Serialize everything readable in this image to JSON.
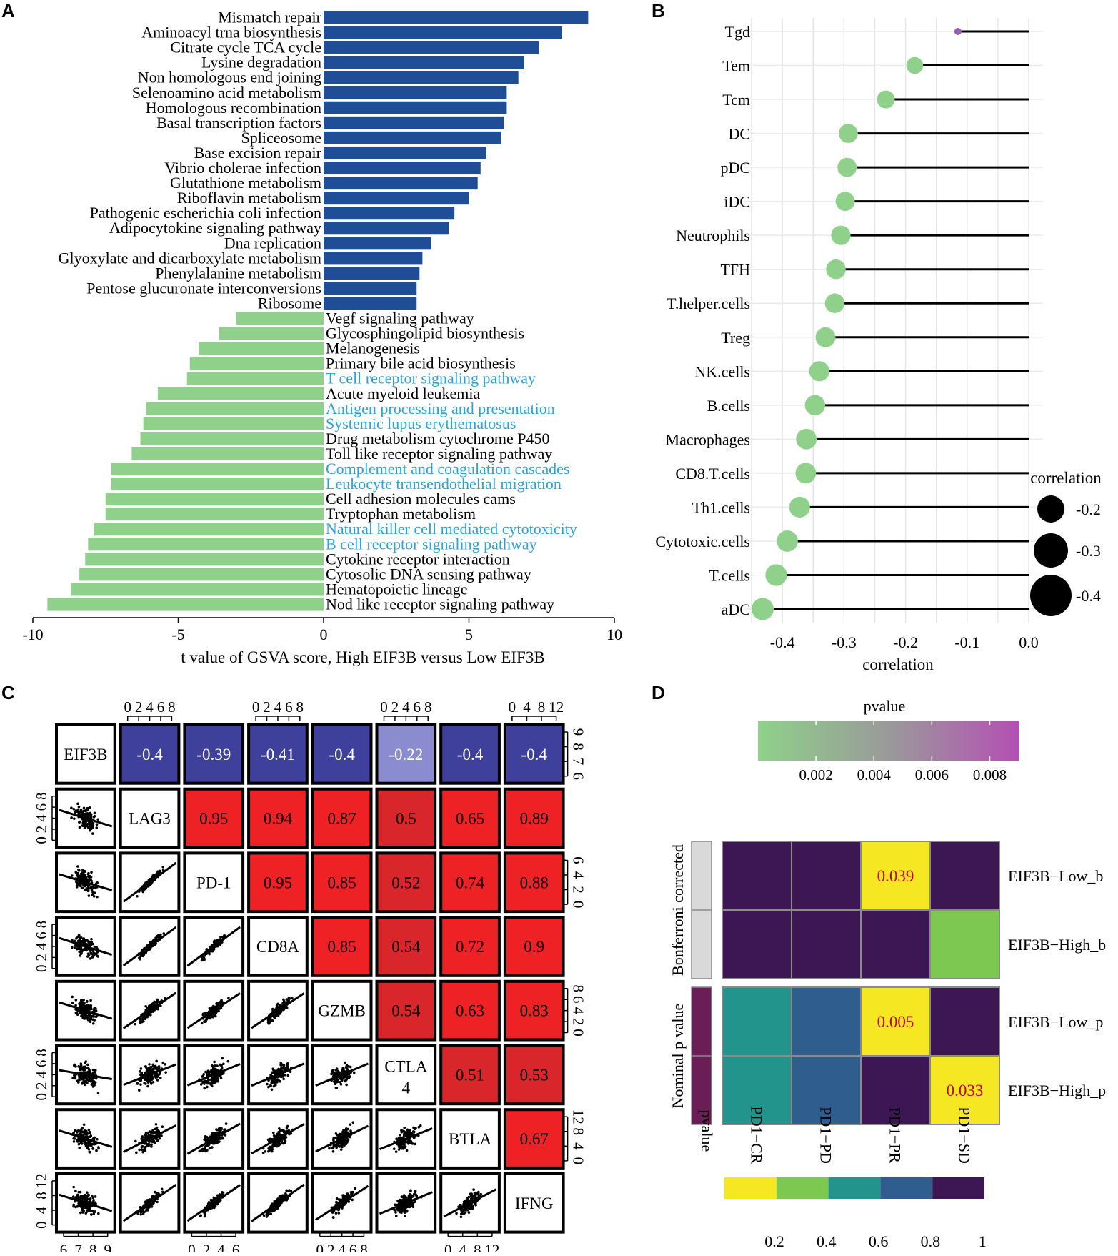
{
  "panel_labels": [
    "A",
    "B",
    "C",
    "D"
  ],
  "chart_data": [
    {
      "panel": "A",
      "type": "bar",
      "orientation": "horizontal",
      "xlabel": "t value of GSVA score, High EIF3B versus Low EIF3B",
      "xlim": [
        -10,
        10
      ],
      "xticks": [
        "-10",
        "-5",
        "0",
        "5",
        "10"
      ],
      "colors": {
        "positive": "#1f4e96",
        "negative": "#8fd18a",
        "highlight_text": "#29a3dc",
        "text": "#000000"
      },
      "bars": [
        {
          "label": "Mismatch repair",
          "value": 9.1,
          "highlight": false
        },
        {
          "label": "Aminoacyl trna biosynthesis",
          "value": 8.2,
          "highlight": false
        },
        {
          "label": "Citrate cycle TCA cycle",
          "value": 7.4,
          "highlight": false
        },
        {
          "label": "Lysine degradation",
          "value": 6.9,
          "highlight": false
        },
        {
          "label": "Non homologous end joining",
          "value": 6.7,
          "highlight": false
        },
        {
          "label": "Selenoamino acid metabolism",
          "value": 6.3,
          "highlight": false
        },
        {
          "label": "Homologous recombination",
          "value": 6.3,
          "highlight": false
        },
        {
          "label": "Basal transcription factors",
          "value": 6.2,
          "highlight": false
        },
        {
          "label": "Spliceosome",
          "value": 6.1,
          "highlight": false
        },
        {
          "label": "Base excision repair",
          "value": 5.6,
          "highlight": false
        },
        {
          "label": "Vibrio cholerae infection",
          "value": 5.4,
          "highlight": false
        },
        {
          "label": "Glutathione metabolism",
          "value": 5.3,
          "highlight": false
        },
        {
          "label": "Riboflavin metabolism",
          "value": 5.0,
          "highlight": false
        },
        {
          "label": "Pathogenic escherichia coli infection",
          "value": 4.5,
          "highlight": false
        },
        {
          "label": "Adipocytokine signaling pathway",
          "value": 4.3,
          "highlight": false
        },
        {
          "label": "Dna replication",
          "value": 3.7,
          "highlight": false
        },
        {
          "label": "Glyoxylate and dicarboxylate metabolism",
          "value": 3.4,
          "highlight": false
        },
        {
          "label": "Phenylalanine metabolism",
          "value": 3.3,
          "highlight": false
        },
        {
          "label": "Pentose glucuronate interconversions",
          "value": 3.2,
          "highlight": false
        },
        {
          "label": "Ribosome",
          "value": 3.2,
          "highlight": false
        },
        {
          "label": "Vegf signaling pathway",
          "value": -3.0,
          "highlight": false
        },
        {
          "label": "Glycosphingolipid biosynthesis",
          "value": -3.6,
          "highlight": false
        },
        {
          "label": "Melanogenesis",
          "value": -4.3,
          "highlight": false
        },
        {
          "label": "Primary bile acid biosynthesis",
          "value": -4.6,
          "highlight": false
        },
        {
          "label": "T cell receptor signaling pathway",
          "value": -4.7,
          "highlight": true
        },
        {
          "label": "Acute myeloid leukemia",
          "value": -5.7,
          "highlight": false
        },
        {
          "label": "Antigen processing and presentation",
          "value": -6.1,
          "highlight": true
        },
        {
          "label": "Systemic lupus erythematosus",
          "value": -6.2,
          "highlight": true
        },
        {
          "label": "Drug metabolism cytochrome P450",
          "value": -6.3,
          "highlight": false
        },
        {
          "label": "Toll like receptor signaling pathway",
          "value": -6.6,
          "highlight": false
        },
        {
          "label": "Complement and coagulation cascades",
          "value": -7.3,
          "highlight": true
        },
        {
          "label": "Leukocyte transendothelial migration",
          "value": -7.3,
          "highlight": true
        },
        {
          "label": "Cell adhesion molecules cams",
          "value": -7.5,
          "highlight": false
        },
        {
          "label": "Tryptophan metabolism",
          "value": -7.5,
          "highlight": false
        },
        {
          "label": "Natural killer cell mediated cytotoxicity",
          "value": -7.9,
          "highlight": true
        },
        {
          "label": "B cell receptor signaling pathway",
          "value": -8.1,
          "highlight": true
        },
        {
          "label": "Cytokine receptor interaction",
          "value": -8.2,
          "highlight": false
        },
        {
          "label": "Cytosolic DNA sensing pathway",
          "value": -8.4,
          "highlight": false
        },
        {
          "label": "Hematopoietic lineage",
          "value": -8.7,
          "highlight": false
        },
        {
          "label": "Nod like receptor signaling pathway",
          "value": -9.5,
          "highlight": false
        }
      ]
    },
    {
      "panel": "B",
      "type": "lollipop",
      "xlabel": "correlation",
      "xlim": [
        -0.45,
        0.0
      ],
      "xticks": [
        "-0.4",
        "-0.3",
        "-0.2",
        "-0.1",
        "0.0"
      ],
      "legend_title": "correlation",
      "legend_items": [
        "-0.2",
        "-0.3",
        "-0.4"
      ],
      "legend_values": [
        -0.2,
        -0.3,
        -0.4
      ],
      "colors": {
        "point": "#8fd18a",
        "point_sig_low": "#9c5bb5",
        "stem": "#000000",
        "legend": "#000000"
      },
      "points": [
        {
          "label": "Tgd",
          "value": -0.115,
          "small": true
        },
        {
          "label": "Tem",
          "value": -0.185,
          "small": false
        },
        {
          "label": "Tcm",
          "value": -0.232,
          "small": false
        },
        {
          "label": "DC",
          "value": -0.293,
          "small": false
        },
        {
          "label": "pDC",
          "value": -0.295,
          "small": false
        },
        {
          "label": "iDC",
          "value": -0.298,
          "small": false
        },
        {
          "label": "Neutrophils",
          "value": -0.305,
          "small": false
        },
        {
          "label": "TFH",
          "value": -0.313,
          "small": false
        },
        {
          "label": "T.helper.cells",
          "value": -0.315,
          "small": false
        },
        {
          "label": "Treg",
          "value": -0.33,
          "small": false
        },
        {
          "label": "NK.cells",
          "value": -0.34,
          "small": false
        },
        {
          "label": "B.cells",
          "value": -0.347,
          "small": false
        },
        {
          "label": "Macrophages",
          "value": -0.361,
          "small": false
        },
        {
          "label": "CD8.T.cells",
          "value": -0.362,
          "small": false
        },
        {
          "label": "Th1.cells",
          "value": -0.372,
          "small": false
        },
        {
          "label": "Cytotoxic.cells",
          "value": -0.392,
          "small": false
        },
        {
          "label": "T.cells",
          "value": -0.41,
          "small": false
        },
        {
          "label": "aDC",
          "value": -0.432,
          "small": false
        }
      ]
    },
    {
      "panel": "C",
      "type": "scatter-matrix",
      "variables": [
        "EIF3B",
        "LAG3",
        "PD-1",
        "CD8A",
        "GZMB",
        "CTLA\n4",
        "BTLA",
        "IFNG"
      ],
      "variable_labels": [
        "EIF3B",
        "LAG3",
        "PD-1",
        "CD8A",
        "GZMB",
        "CTLA",
        "BTLA",
        "IFNG"
      ],
      "variable_label_suffix": {
        "5": "4"
      },
      "correlations": [
        [
          null,
          -0.4,
          -0.39,
          -0.41,
          -0.4,
          -0.22,
          -0.4,
          -0.4
        ],
        [
          null,
          null,
          0.95,
          0.94,
          0.87,
          0.5,
          0.65,
          0.89
        ],
        [
          null,
          null,
          null,
          0.95,
          0.85,
          0.52,
          0.74,
          0.88
        ],
        [
          null,
          null,
          null,
          null,
          0.85,
          0.54,
          0.72,
          0.9
        ],
        [
          null,
          null,
          null,
          null,
          null,
          0.54,
          0.63,
          0.83
        ],
        [
          null,
          null,
          null,
          null,
          null,
          null,
          0.51,
          0.53
        ],
        [
          null,
          null,
          null,
          null,
          null,
          null,
          null,
          0.67
        ],
        [
          null,
          null,
          null,
          null,
          null,
          null,
          null,
          null
        ]
      ],
      "correlation_labels": [
        [
          "",
          "-0.4",
          "-0.39",
          "-0.41",
          "-0.4",
          "-0.22",
          "-0.4",
          "-0.4"
        ],
        [
          "",
          "",
          "0.95",
          "0.94",
          "0.87",
          "0.5",
          "0.65",
          "0.89"
        ],
        [
          "",
          "",
          "",
          "0.95",
          "0.85",
          "0.52",
          "0.74",
          "0.88"
        ],
        [
          "",
          "",
          "",
          "",
          "0.85",
          "0.54",
          "0.72",
          "0.9"
        ],
        [
          "",
          "",
          "",
          "",
          "",
          "0.54",
          "0.63",
          "0.83"
        ],
        [
          "",
          "",
          "",
          "",
          "",
          "",
          "0.51",
          "0.53"
        ],
        [
          "",
          "",
          "",
          "",
          "",
          "",
          "",
          "0.67"
        ],
        [
          "",
          "",
          "",
          "",
          "",
          "",
          "",
          ""
        ]
      ],
      "top_axis_ticks": {
        "col1": [
          "0",
          "2",
          "4",
          "6",
          "8"
        ],
        "col3": [
          "0",
          "2",
          "4",
          "6",
          "8"
        ],
        "col5": [
          "0",
          "2",
          "4",
          "6",
          "8"
        ],
        "col7": [
          "0",
          "4",
          "8",
          "12"
        ]
      },
      "bottom_axis_ticks": {
        "col0": [
          "6",
          "7",
          "8",
          "9"
        ],
        "col2": [
          "0",
          "2",
          "4",
          "6"
        ],
        "col4": [
          "0",
          "2",
          "4",
          "6",
          "8"
        ],
        "col6": [
          "0",
          "4",
          "8",
          "12"
        ]
      },
      "left_axis_ticks": {
        "row1": [
          "0",
          "2",
          "4",
          "6",
          "8"
        ],
        "row3": [
          "0",
          "2",
          "4",
          "6",
          "8"
        ],
        "row5": [
          "0",
          "2",
          "4",
          "6",
          "8"
        ],
        "row7": [
          "0",
          "4",
          "8",
          "12"
        ]
      },
      "right_axis_ticks": {
        "row0": [
          "6",
          "7",
          "8",
          "9"
        ],
        "row2": [
          "0",
          "2",
          "4",
          "6"
        ],
        "row4": [
          "0",
          "2",
          "4",
          "6",
          "8"
        ],
        "row6": [
          "0",
          "4",
          "8",
          "12"
        ]
      },
      "colors": {
        "negative": "#3f3f9c",
        "weak_negative": "#8b8ccf",
        "positive": "#ee2125",
        "mid_positive": "#d9262a",
        "text_on_fill": "#ffffff"
      }
    },
    {
      "panel": "D",
      "type": "heatmap",
      "pvalue_legend_title": "pvalue",
      "pvalue_legend_ticks": [
        "0.002",
        "0.004",
        "0.006",
        "0.008"
      ],
      "pvalue_legend_range": [
        0.0,
        0.009
      ],
      "bottom_legend_ticks": [
        "0.2",
        "0.4",
        "0.6",
        "0.8",
        "1"
      ],
      "bottom_legend_colors": [
        "#f5e823",
        "#7cc851",
        "#23948c",
        "#2f5e8e",
        "#3d1753"
      ],
      "columns": [
        "PD1−CR",
        "PD1−PD",
        "PD1−PR",
        "PD1−SD"
      ],
      "rows": [
        "EIF3B−Low_b",
        "EIF3B−High_b",
        "EIF3B−Low_p",
        "EIF3B−High_p"
      ],
      "values": [
        [
          1.0,
          1.0,
          0.039,
          1.0
        ],
        [
          1.0,
          1.0,
          1.0,
          0.35
        ],
        [
          0.55,
          0.75,
          0.005,
          1.0
        ],
        [
          0.55,
          0.75,
          1.0,
          0.033
        ]
      ],
      "cell_labels": [
        [
          "",
          "",
          "0.039",
          ""
        ],
        [
          "",
          "",
          "",
          ""
        ],
        [
          "",
          "",
          "0.005",
          ""
        ],
        [
          "",
          "",
          "",
          "0.033"
        ]
      ],
      "row_groups": [
        {
          "label": "Bonferroni corrected",
          "color": "#d9d9d9"
        },
        {
          "label": "Nominal p value",
          "color": "#6b1d56"
        }
      ],
      "annotation_label": "pvalue",
      "colors": {
        "label_text": "#c4001f",
        "grid": "#8a8a8a",
        "pv_low": "#8fd18a",
        "pv_mid": "#9a9a9a",
        "pv_high": "#b450b4"
      }
    }
  ]
}
